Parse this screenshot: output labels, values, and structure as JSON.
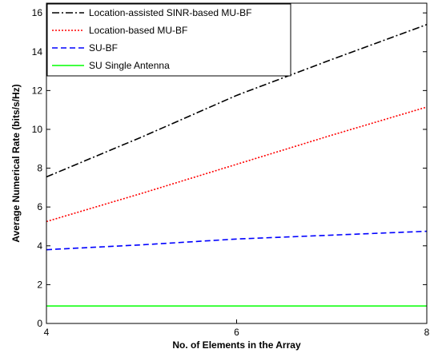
{
  "chart_data": {
    "type": "line",
    "title": "",
    "xlabel": "No. of Elements in the Array",
    "ylabel": "Average Numerical Rate (bits/s/Hz)",
    "xlim": [
      4,
      8
    ],
    "ylim": [
      0,
      16.5
    ],
    "xticks": [
      4,
      6,
      8
    ],
    "yticks": [
      0,
      2,
      4,
      6,
      8,
      10,
      12,
      14,
      16
    ],
    "grid": false,
    "legend_position": "top-left",
    "series": [
      {
        "name": "Location-assisted SINR-based MU-BF",
        "x": [
          4,
          5,
          6,
          7,
          8
        ],
        "y": [
          7.55,
          9.6,
          11.75,
          13.6,
          15.4
        ],
        "color": "#000000",
        "dash": "dashdot"
      },
      {
        "name": "Location-based MU-BF",
        "x": [
          4,
          5,
          6,
          7,
          8
        ],
        "y": [
          5.25,
          6.7,
          8.2,
          9.7,
          11.15
        ],
        "color": "#ff0000",
        "dash": "dotted"
      },
      {
        "name": "SU-BF",
        "x": [
          4,
          5,
          6,
          7,
          8
        ],
        "y": [
          3.8,
          4.05,
          4.35,
          4.55,
          4.75
        ],
        "color": "#0000ff",
        "dash": "dashed"
      },
      {
        "name": "SU Single Antenna",
        "x": [
          4,
          5,
          6,
          7,
          8
        ],
        "y": [
          0.9,
          0.9,
          0.9,
          0.9,
          0.9
        ],
        "color": "#00ff00",
        "dash": "solid"
      }
    ]
  }
}
